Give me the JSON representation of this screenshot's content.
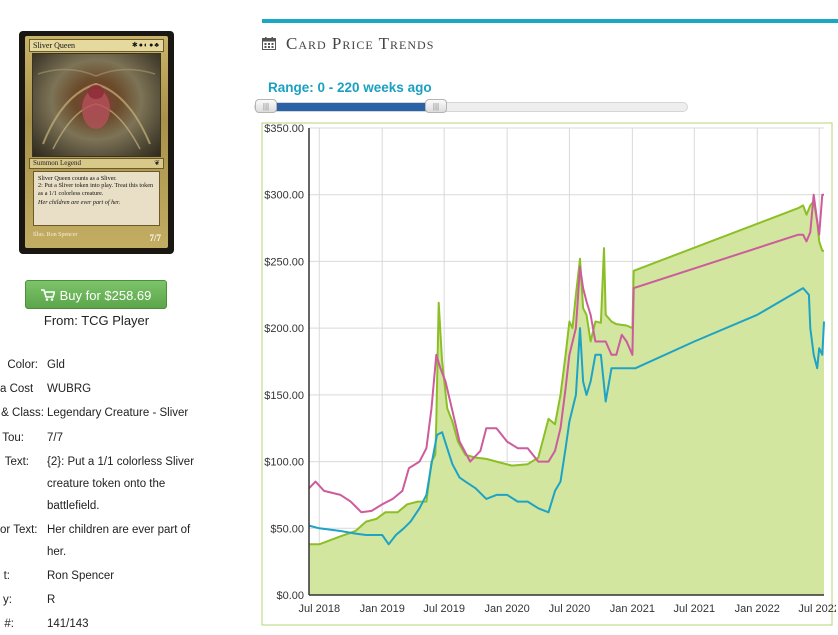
{
  "card": {
    "name": "Sliver Queen",
    "mana_symbols": "✱●◐●♣",
    "type_line": "Summon Legend",
    "rules_1": "Sliver Queen counts as a Sliver.",
    "rules_2": "2: Put a Sliver token into play. Treat this token as a 1/1 colorless creature.",
    "flavor": "Her children are ever part of her.",
    "illus": "Illus. Ron Spencer",
    "pt": "7/7"
  },
  "buy": {
    "label": "Buy for $258.69",
    "from": "From: TCG Player",
    "icon": "shopping-cart-icon"
  },
  "info": [
    {
      "label": "Color:",
      "value": "Gld"
    },
    {
      "label": "a Cost",
      "value": "WUBRG"
    },
    {
      "label": "& Class:",
      "value": "Legendary Creature - Sliver"
    },
    {
      "label": "Tou:",
      "value": "7/7"
    },
    {
      "label": "Text:",
      "value": "{2}: Put a 1/1 colorless Sliver creature token onto the battlefield."
    },
    {
      "label": "or Text:",
      "value": "Her children are ever part of her."
    },
    {
      "label": "t:",
      "value": "Ron Spencer"
    },
    {
      "label": "y:",
      "value": "R"
    },
    {
      "label": "#:",
      "value": "141/143"
    }
  ],
  "section": {
    "title": "Card Price Trends",
    "icon": "calendar-icon",
    "accent": "#19a8c4"
  },
  "range": {
    "label": "Range: 0 - 220 weeks ago",
    "min_weeks_ago": 0,
    "max_weeks_ago": 220
  },
  "chart_data": {
    "type": "area",
    "x_ticks": [
      "Jul 2018",
      "Jan 2019",
      "Jul 2019",
      "Jan 2020",
      "Jul 2020",
      "Jan 2021",
      "Jul 2021",
      "Jan 2022",
      "Jul 2022"
    ],
    "y_ticks": [
      "$0.00",
      "$50.00",
      "$100.00",
      "$150.00",
      "$200.00",
      "$250.00",
      "$300.00",
      "$350.00"
    ],
    "ylim": [
      0,
      350
    ],
    "xlim": [
      "2018-06-01",
      "2022-07-15"
    ],
    "grid": true,
    "colors": {
      "green": "#8cbf26",
      "pink": "#cc5c9c",
      "blue": "#1ea3c6",
      "fill": "#d2e6a0"
    },
    "series": [
      {
        "color": "green",
        "x": [
          "2018-06-01",
          "2018-07-01",
          "2018-09-01",
          "2018-10-15",
          "2018-11-15",
          "2018-12-15",
          "2019-01-10",
          "2019-02-15",
          "2019-03-15",
          "2019-04-15",
          "2019-05-10",
          "2019-05-25",
          "2019-06-05",
          "2019-06-08",
          "2019-06-15",
          "2019-06-25",
          "2019-07-10",
          "2019-07-25",
          "2019-08-10",
          "2019-09-01",
          "2019-10-01",
          "2019-11-01",
          "2019-12-01",
          "2020-01-15",
          "2020-03-01",
          "2020-04-01",
          "2020-05-01",
          "2020-05-20",
          "2020-06-05",
          "2020-06-20",
          "2020-07-01",
          "2020-07-10",
          "2020-07-20",
          "2020-08-01",
          "2020-08-10",
          "2020-08-20",
          "2020-09-01",
          "2020-09-15",
          "2020-10-01",
          "2020-10-10",
          "2020-10-15",
          "2020-11-01",
          "2020-11-15",
          "2020-12-15",
          "2021-01-01",
          "2021-01-05",
          "2022-05-01",
          "2022-05-15",
          "2022-05-25",
          "2022-06-05",
          "2022-06-15",
          "2022-06-25",
          "2022-07-01",
          "2022-07-10",
          "2022-07-15"
        ],
        "y": [
          38,
          38,
          44,
          48,
          55,
          57,
          62,
          62,
          68,
          70,
          70,
          100,
          105,
          130,
          219,
          175,
          140,
          130,
          115,
          105,
          103,
          102,
          100,
          97,
          98,
          103,
          132,
          128,
          150,
          180,
          205,
          200,
          225,
          252,
          215,
          210,
          190,
          205,
          204,
          260,
          210,
          205,
          203,
          202,
          200,
          243,
          290,
          292,
          285,
          292,
          295,
          280,
          265,
          258,
          258
        ]
      },
      {
        "color": "pink",
        "x": [
          "2018-06-01",
          "2018-06-20",
          "2018-07-15",
          "2018-09-01",
          "2018-10-01",
          "2018-11-01",
          "2018-12-01",
          "2019-01-01",
          "2019-02-01",
          "2019-03-01",
          "2019-03-20",
          "2019-04-20",
          "2019-05-10",
          "2019-05-25",
          "2019-06-08",
          "2019-06-20",
          "2019-07-05",
          "2019-07-25",
          "2019-08-15",
          "2019-09-15",
          "2019-10-15",
          "2019-11-01",
          "2019-12-01",
          "2020-01-01",
          "2020-02-01",
          "2020-03-01",
          "2020-04-01",
          "2020-05-01",
          "2020-05-20",
          "2020-06-05",
          "2020-06-20",
          "2020-07-01",
          "2020-07-20",
          "2020-08-01",
          "2020-08-10",
          "2020-08-20",
          "2020-09-01",
          "2020-09-15",
          "2020-10-01",
          "2020-10-15",
          "2020-11-01",
          "2020-11-15",
          "2020-12-01",
          "2020-12-15",
          "2021-01-01",
          "2021-01-05",
          "2022-05-01",
          "2022-05-15",
          "2022-05-25",
          "2022-06-05",
          "2022-06-15",
          "2022-06-25",
          "2022-07-01",
          "2022-07-10",
          "2022-07-15"
        ],
        "y": [
          80,
          85,
          78,
          75,
          70,
          62,
          63,
          68,
          72,
          78,
          95,
          100,
          110,
          140,
          180,
          170,
          160,
          138,
          115,
          100,
          108,
          125,
          125,
          115,
          110,
          110,
          100,
          100,
          108,
          125,
          155,
          180,
          200,
          246,
          230,
          220,
          210,
          190,
          190,
          190,
          180,
          180,
          195,
          190,
          180,
          230,
          270,
          270,
          265,
          272,
          300,
          280,
          270,
          300,
          300
        ]
      },
      {
        "color": "blue",
        "x": [
          "2018-06-01",
          "2018-07-01",
          "2018-09-01",
          "2018-10-15",
          "2018-11-15",
          "2018-12-15",
          "2019-01-01",
          "2019-01-20",
          "2019-02-10",
          "2019-03-05",
          "2019-03-25",
          "2019-04-20",
          "2019-05-10",
          "2019-05-25",
          "2019-06-10",
          "2019-06-25",
          "2019-07-10",
          "2019-07-25",
          "2019-08-15",
          "2019-09-01",
          "2019-10-01",
          "2019-11-01",
          "2019-12-01",
          "2020-01-01",
          "2020-02-01",
          "2020-03-01",
          "2020-04-01",
          "2020-05-01",
          "2020-05-20",
          "2020-06-05",
          "2020-06-20",
          "2020-07-01",
          "2020-07-20",
          "2020-08-01",
          "2020-08-10",
          "2020-08-20",
          "2020-09-01",
          "2020-09-15",
          "2020-10-01",
          "2020-10-15",
          "2020-11-01",
          "2020-11-15",
          "2020-12-01",
          "2021-01-01",
          "2021-01-10",
          "2021-07-01",
          "2022-01-01",
          "2022-05-15",
          "2022-06-01",
          "2022-06-05",
          "2022-06-15",
          "2022-06-25",
          "2022-07-01",
          "2022-07-10",
          "2022-07-15"
        ],
        "y": [
          52,
          50,
          48,
          46,
          45,
          45,
          45,
          38,
          45,
          50,
          55,
          65,
          75,
          98,
          120,
          122,
          110,
          98,
          88,
          85,
          80,
          72,
          75,
          75,
          70,
          70,
          65,
          62,
          78,
          85,
          110,
          130,
          150,
          200,
          160,
          150,
          160,
          180,
          180,
          145,
          170,
          170,
          170,
          170,
          170,
          190,
          210,
          230,
          225,
          200,
          180,
          170,
          185,
          180,
          205
        ]
      }
    ]
  }
}
